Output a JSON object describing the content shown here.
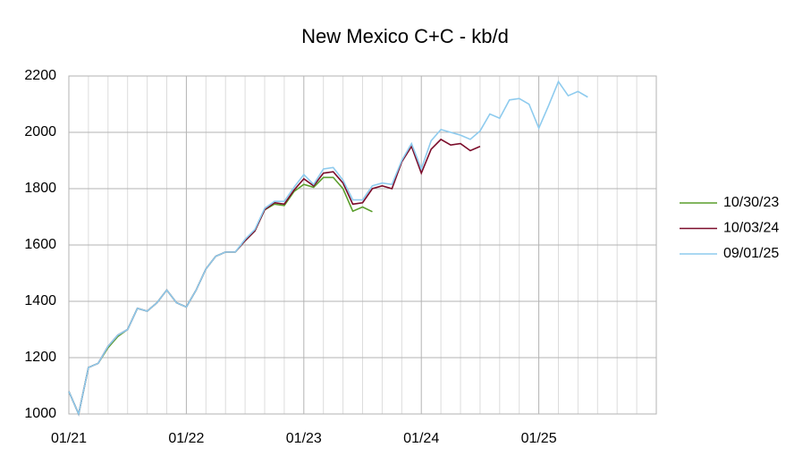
{
  "chart_data": {
    "type": "line",
    "title": "New Mexico C+C - kb/d",
    "categories": [
      "01/21",
      null,
      null,
      null,
      null,
      null,
      null,
      null,
      null,
      null,
      null,
      null,
      "01/22",
      null,
      null,
      null,
      null,
      null,
      null,
      null,
      null,
      null,
      null,
      null,
      "01/23",
      null,
      null,
      null,
      null,
      null,
      null,
      null,
      null,
      null,
      null,
      null,
      "01/24",
      null,
      null,
      null,
      null,
      null,
      null,
      null,
      null,
      null,
      null,
      null,
      "01/25",
      null,
      null,
      null,
      null,
      null,
      null,
      null,
      null,
      null,
      null,
      null,
      null
    ],
    "series": [
      {
        "name": "10/30/23",
        "color": "#5a9e2c",
        "values": [
          1080,
          1000,
          1165,
          1180,
          1235,
          1275,
          1300,
          1375,
          1365,
          1395,
          1440,
          1395,
          1380,
          1440,
          1515,
          1560,
          1575,
          1575,
          1615,
          1650,
          1725,
          1745,
          1740,
          1790,
          1815,
          1805,
          1840,
          1840,
          1800,
          1720,
          1735,
          1718,
          null,
          null,
          null,
          null,
          null,
          null,
          null,
          null,
          null,
          null,
          null,
          null,
          null,
          null,
          null,
          null,
          null,
          null,
          null,
          null,
          null,
          null,
          null,
          null,
          null,
          null,
          null,
          null,
          null
        ]
      },
      {
        "name": "10/03/24",
        "color": "#7b0c2a",
        "values": [
          1080,
          1000,
          1165,
          1180,
          1240,
          1280,
          1300,
          1375,
          1365,
          1395,
          1440,
          1395,
          1380,
          1440,
          1515,
          1560,
          1575,
          1575,
          1615,
          1650,
          1725,
          1750,
          1745,
          1795,
          1835,
          1810,
          1855,
          1860,
          1820,
          1745,
          1750,
          1800,
          1810,
          1800,
          1895,
          1950,
          1855,
          1940,
          1975,
          1955,
          1960,
          1935,
          1950,
          null,
          null,
          null,
          null,
          null,
          null,
          null,
          null,
          null,
          null,
          null,
          null,
          null,
          null,
          null,
          null,
          null,
          null
        ]
      },
      {
        "name": "09/01/25",
        "color": "#8ecbee",
        "values": [
          1080,
          1000,
          1165,
          1180,
          1240,
          1280,
          1300,
          1375,
          1365,
          1395,
          1440,
          1395,
          1380,
          1440,
          1515,
          1560,
          1575,
          1575,
          1620,
          1655,
          1730,
          1755,
          1755,
          1805,
          1850,
          1815,
          1870,
          1875,
          1830,
          1760,
          1760,
          1810,
          1820,
          1815,
          1900,
          1960,
          1870,
          1970,
          2010,
          2000,
          1990,
          1975,
          2005,
          2065,
          2050,
          2115,
          2120,
          2100,
          2015,
          2095,
          2180,
          2130,
          2145,
          2125,
          null,
          null,
          null,
          null,
          null,
          null,
          null
        ]
      }
    ],
    "ylim": [
      1000,
      2200
    ],
    "yticks": [
      1000,
      1200,
      1400,
      1600,
      1800,
      2000,
      2200
    ],
    "grid": true,
    "legend": "right"
  }
}
